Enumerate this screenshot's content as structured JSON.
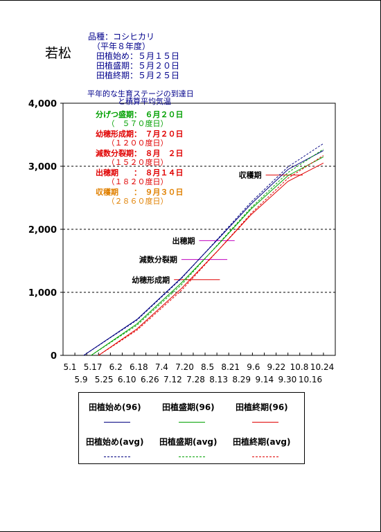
{
  "title": "若松",
  "info": {
    "variety": "品種：コシヒカリ",
    "year": "　（平年８年度）",
    "start": "　田植始め：５月１５日",
    "peak": "　田植盛期：５月２０日",
    "end": "　田植終期：５月２５日"
  },
  "subtitle_1": "平年的な生育ステージの到達日",
  "subtitle_2": "　　　　と積算平均気温",
  "stages": [
    {
      "label": "分げつ盛期：　６月２０日",
      "sub": "　　（　５７０度日）",
      "color": "#00a000"
    },
    {
      "label": "幼穂形成期：　７月２０日",
      "sub": "　　（１２００度日）",
      "color": "#e00000"
    },
    {
      "label": "減数分裂期：　８月　２日",
      "sub": "　　（１５２０度日）",
      "color": "#e00000"
    },
    {
      "label": "出穂期　　：　８月１４日",
      "sub": "　　（１８２０度日）",
      "color": "#e00000"
    },
    {
      "label": "収穫期　　：　９月３０日",
      "sub": "　　（２８６０度日）",
      "color": "#e08000"
    }
  ],
  "chart_data": {
    "type": "line",
    "y_ticks": [
      "0",
      "1,000",
      "2,000",
      "3,000",
      "4,000"
    ],
    "ylim": [
      0,
      4000
    ],
    "x_ticks_top": [
      "5.1",
      "5.17",
      "6.2",
      "6.18",
      "7.4",
      "7.20",
      "8.5",
      "8.21",
      "9.6",
      "9.22",
      "10.8",
      "10.24"
    ],
    "x_ticks_bottom": [
      "5.9",
      "5.25",
      "6.10",
      "6.26",
      "7.12",
      "7.28",
      "8.13",
      "8.29",
      "9.14",
      "9.30",
      "10.16"
    ],
    "x_range_days": [
      "5.1",
      "10.31"
    ],
    "grid": "dashed horizontal at 1,000 / 2,000 / 3,000",
    "series": [
      {
        "name": "田植始め(96)",
        "color": "#000080",
        "style": "solid",
        "start": "5.15",
        "points": [
          [
            "5.15",
            0
          ],
          [
            "6.20",
            570
          ],
          [
            "7.20",
            1230
          ],
          [
            "8.14",
            1850
          ],
          [
            "9.5",
            2400
          ],
          [
            "9.30",
            2950
          ],
          [
            "10.24",
            3250
          ]
        ]
      },
      {
        "name": "田植盛期(96)",
        "color": "#00a000",
        "style": "solid",
        "start": "5.20",
        "points": [
          [
            "5.20",
            0
          ],
          [
            "6.20",
            500
          ],
          [
            "7.20",
            1150
          ],
          [
            "8.14",
            1760
          ],
          [
            "9.5",
            2320
          ],
          [
            "9.30",
            2850
          ],
          [
            "10.24",
            3150
          ]
        ]
      },
      {
        "name": "田植終期(96)",
        "color": "#e00000",
        "style": "solid",
        "start": "5.25",
        "points": [
          [
            "5.25",
            0
          ],
          [
            "6.20",
            420
          ],
          [
            "7.20",
            1060
          ],
          [
            "8.14",
            1670
          ],
          [
            "9.5",
            2230
          ],
          [
            "9.30",
            2760
          ],
          [
            "10.24",
            3050
          ]
        ]
      },
      {
        "name": "田植始め(avg)",
        "color": "#000080",
        "style": "dashed",
        "start": "5.15",
        "points": [
          [
            "5.15",
            0
          ],
          [
            "6.20",
            560
          ],
          [
            "7.20",
            1220
          ],
          [
            "8.14",
            1860
          ],
          [
            "9.5",
            2430
          ],
          [
            "9.30",
            2990
          ],
          [
            "10.24",
            3360
          ]
        ]
      },
      {
        "name": "田植盛期(avg)",
        "color": "#00a000",
        "style": "dashed",
        "start": "5.20",
        "points": [
          [
            "5.20",
            0
          ],
          [
            "6.20",
            480
          ],
          [
            "7.20",
            1120
          ],
          [
            "8.14",
            1770
          ],
          [
            "9.5",
            2340
          ],
          [
            "9.30",
            2900
          ],
          [
            "10.24",
            3270
          ]
        ]
      },
      {
        "name": "田植終期(avg)",
        "color": "#e00000",
        "style": "dashed",
        "start": "5.25",
        "points": [
          [
            "5.25",
            0
          ],
          [
            "6.20",
            400
          ],
          [
            "7.20",
            1030
          ],
          [
            "8.14",
            1670
          ],
          [
            "9.5",
            2250
          ],
          [
            "9.30",
            2810
          ],
          [
            "10.24",
            3170
          ]
        ]
      }
    ],
    "stage_marks": [
      {
        "label": "幼穂形成期",
        "value": 1200,
        "color": "#e00000",
        "from": "7.15",
        "to": "8.15"
      },
      {
        "label": "減数分裂期",
        "value": 1520,
        "color": "#c000c0",
        "from": "7.20",
        "to": "8.20"
      },
      {
        "label": "出穂期",
        "value": "1820",
        "color": "#c000c0",
        "from": "8.1",
        "to": "8.25"
      },
      {
        "label": "収穫期",
        "value": 2860,
        "color": "#e00000",
        "from": "9.15",
        "to": "10.10"
      }
    ]
  },
  "legend": [
    {
      "label": "田植始め(96)",
      "color": "#000080",
      "style": "solid"
    },
    {
      "label": "田植盛期(96)",
      "color": "#00a000",
      "style": "solid"
    },
    {
      "label": "田植終期(96)",
      "color": "#e00000",
      "style": "solid"
    },
    {
      "label": "田植始め(avg)",
      "color": "#000080",
      "style": "dashed"
    },
    {
      "label": "田植盛期(avg)",
      "color": "#00a000",
      "style": "dashed"
    },
    {
      "label": "田植終期(avg)",
      "color": "#e00000",
      "style": "dashed"
    }
  ]
}
